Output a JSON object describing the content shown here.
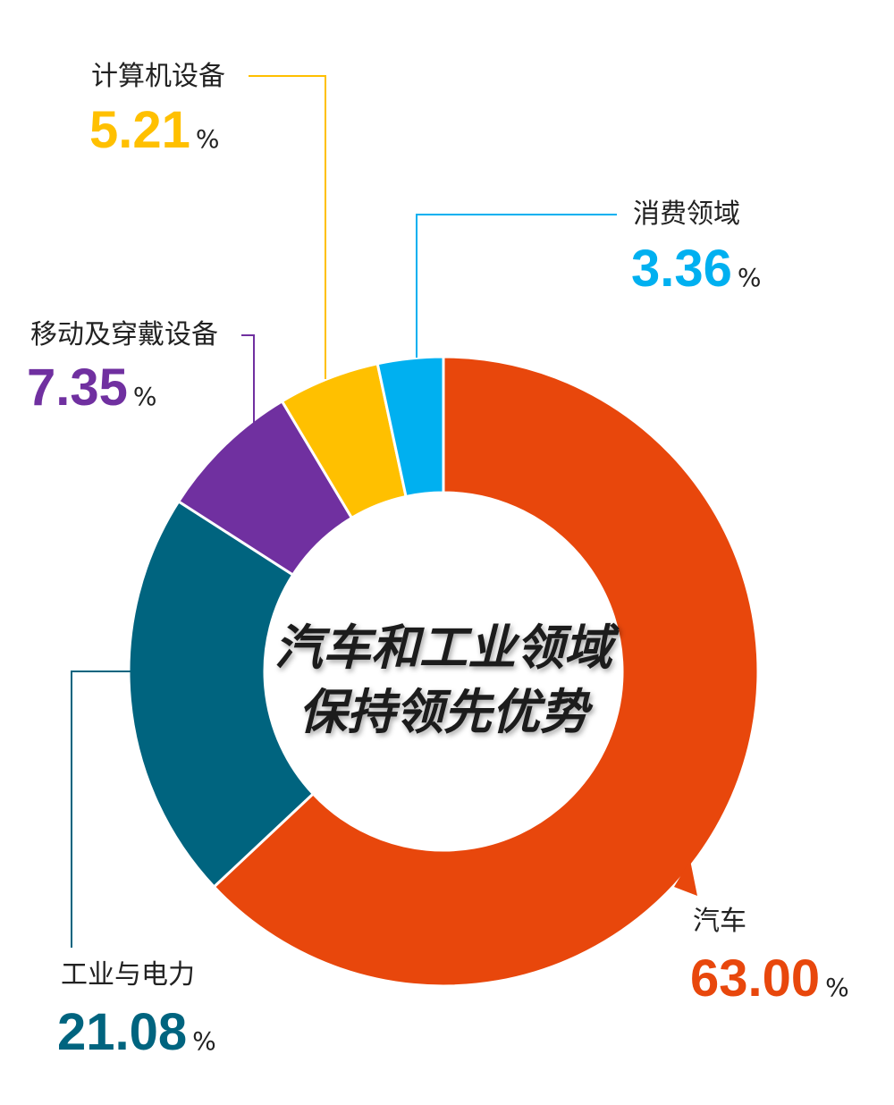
{
  "chart_data": {
    "type": "pie",
    "variant": "donut",
    "center_title_lines": [
      "汽车和工业领域",
      "保持领先优势"
    ],
    "unit": "%",
    "slices": [
      {
        "name": "汽车",
        "value": 63.0,
        "value_label": "63.00",
        "color": "#E8470C"
      },
      {
        "name": "工业与电力",
        "value": 21.08,
        "value_label": "21.08",
        "color": "#00647F"
      },
      {
        "name": "移动及穿戴设备",
        "value": 7.35,
        "value_label": "7.35",
        "color": "#7030A0"
      },
      {
        "name": "计算机设备",
        "value": 5.21,
        "value_label": "5.21",
        "color": "#FFC000"
      },
      {
        "name": "消费领域",
        "value": 3.36,
        "value_label": "3.36",
        "color": "#00B0F0"
      }
    ]
  }
}
